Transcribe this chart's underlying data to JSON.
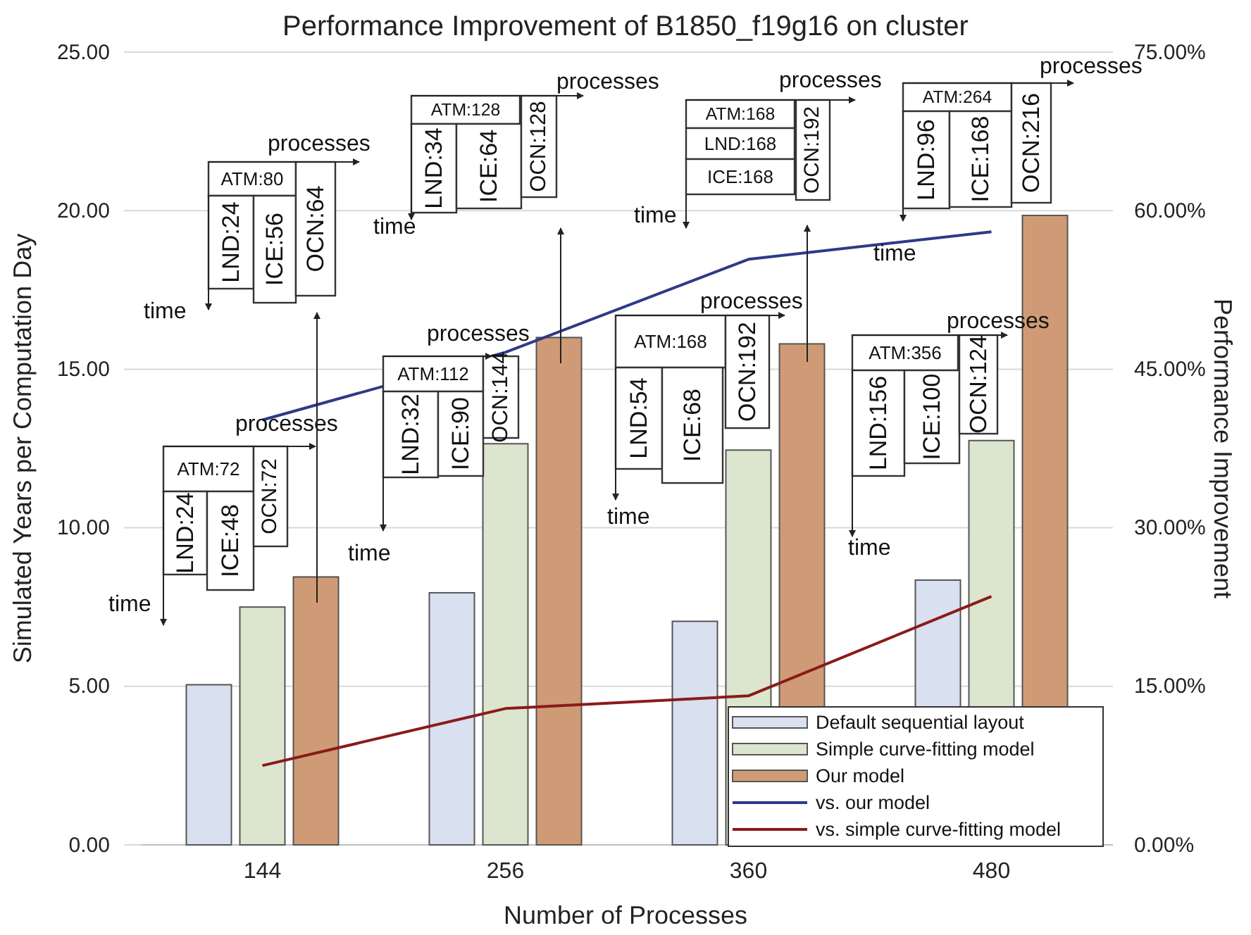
{
  "chart_data": {
    "type": "bar",
    "title": "Performance Improvement of B1850_f19g16 on cluster",
    "xlabel": "Number of Processes",
    "ylabel": "Simulated Years per Computation Day",
    "y2label": "Performance Improvement",
    "categories": [
      "144",
      "256",
      "360",
      "480"
    ],
    "series": [
      {
        "name": "Default sequential layout",
        "color": "#d9e0f0",
        "values": [
          5.05,
          7.95,
          7.05,
          8.35
        ]
      },
      {
        "name": "Simple curve-fitting model",
        "color": "#dce6cf",
        "values": [
          7.5,
          12.65,
          12.45,
          12.75
        ]
      },
      {
        "name": "Our model",
        "color": "#cf9b76",
        "values": [
          8.45,
          16.0,
          15.8,
          19.85
        ]
      },
      {
        "name": "vs. our model",
        "type": "line",
        "axis": "y2",
        "color": "#2e3a87",
        "values": [
          40.2,
          46.6,
          55.4,
          58.0
        ]
      },
      {
        "name": "vs. simple curve-fitting model",
        "type": "line",
        "axis": "y2",
        "color": "#8b1a1a",
        "values": [
          7.5,
          12.9,
          14.1,
          23.5
        ]
      }
    ],
    "ylim": [
      0,
      25
    ],
    "yticks": [
      {
        "value": 0,
        "label": "0.00"
      },
      {
        "value": 5,
        "label": "5.00"
      },
      {
        "value": 10,
        "label": "10.00"
      },
      {
        "value": 15,
        "label": "15.00"
      },
      {
        "value": 20,
        "label": "20.00"
      },
      {
        "value": 25,
        "label": "25.00"
      }
    ],
    "y2lim": [
      0,
      75
    ],
    "y2ticks": [
      {
        "value": 0,
        "label": "0.00%"
      },
      {
        "value": 15,
        "label": "15.00%"
      },
      {
        "value": 30,
        "label": "30.00%"
      },
      {
        "value": 45,
        "label": "45.00%"
      },
      {
        "value": 60,
        "label": "60.00%"
      },
      {
        "value": 75,
        "label": "75.00%"
      }
    ],
    "grid": "y",
    "legend": "bottom right",
    "marker": "none",
    "line_style": "solid",
    "annotations": [
      "ATM:80",
      "LND:24",
      "ICE:56",
      "OCN:64",
      "processes",
      "time",
      "ATM:128",
      "LND:34",
      "ICE:64",
      "OCN:128",
      "processes",
      "time",
      "ATM:168",
      "LND:168",
      "ICE:168",
      "OCN:192",
      "processes",
      "time",
      "ATM:264",
      "LND:96",
      "ICE:168",
      "OCN:216",
      "processes",
      "time",
      "ATM:72",
      "LND:24",
      "ICE:48",
      "OCN:72",
      "processes",
      "time",
      "ATM:112",
      "LND:32",
      "ICE:90",
      "OCN:144",
      "processes",
      "time",
      "ATM:168",
      "LND:54",
      "ICE:68",
      "OCN:192",
      "processes",
      "time",
      "ATM:356",
      "LND:156",
      "ICE:100",
      "OCN:124",
      "processes",
      "time"
    ]
  }
}
